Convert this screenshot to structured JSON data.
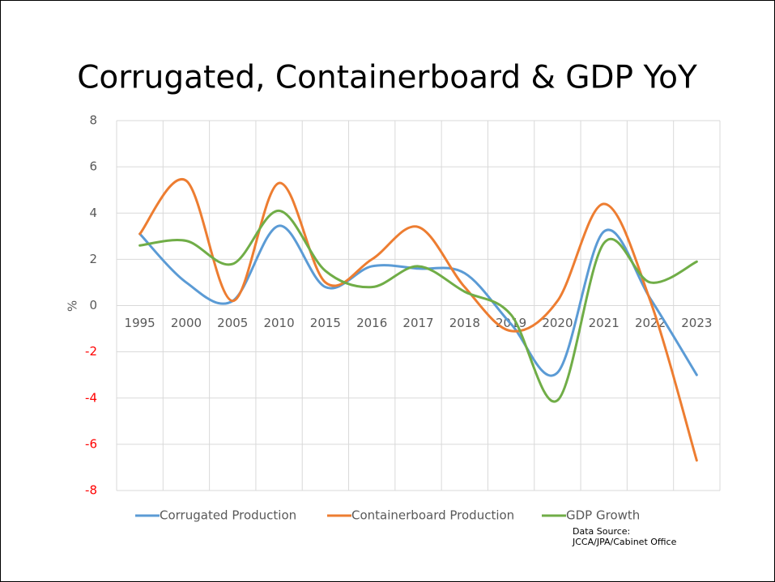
{
  "chart_data": {
    "type": "line",
    "title": "Corrugated, Containerboard & GDP YoY",
    "ylabel": "%",
    "categories": [
      "1995",
      "2000",
      "2005",
      "2010",
      "2015",
      "2016",
      "2017",
      "2018",
      "2019",
      "2020",
      "2021",
      "2022",
      "2023"
    ],
    "series": [
      {
        "name": "Corrugated Production",
        "color": "#5b9bd5",
        "values": [
          3.1,
          1.0,
          0.2,
          3.45,
          0.8,
          1.7,
          1.6,
          1.4,
          -0.8,
          -2.9,
          3.2,
          0.3,
          -3.0
        ]
      },
      {
        "name": "Containerboard Production",
        "color": "#ed7d31",
        "values": [
          3.1,
          5.4,
          0.2,
          5.3,
          1.0,
          2.0,
          3.4,
          0.8,
          -1.1,
          0.2,
          4.4,
          0.2,
          -6.7
        ]
      },
      {
        "name": "GDP Growth",
        "color": "#70ad47",
        "values": [
          2.6,
          2.8,
          1.8,
          4.1,
          1.5,
          0.8,
          1.7,
          0.6,
          -0.4,
          -4.1,
          2.7,
          1.0,
          1.9
        ]
      }
    ],
    "ylim": [
      -8,
      8
    ],
    "yticks": [
      -8,
      -6,
      -4,
      -2,
      0,
      2,
      4,
      6,
      8
    ],
    "grid": true,
    "smooth": true,
    "legend": "bottom",
    "negative_tick_color": "#ff0000",
    "source": [
      "Data Source:",
      "JCCA/JPA/Cabinet Office"
    ]
  }
}
